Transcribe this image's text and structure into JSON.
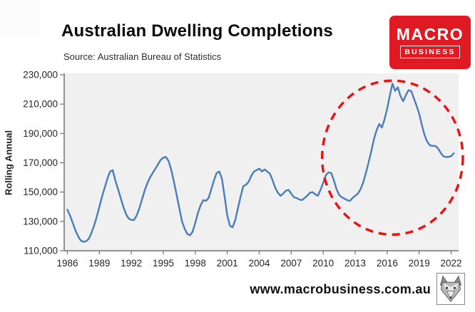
{
  "header": {
    "title": "Australian Dwelling Completions",
    "source": "Source: Australian Bureau of Statistics"
  },
  "logo": {
    "line1": "MACRO",
    "line2": "BUSINESS",
    "bg_color": "#e01a23"
  },
  "footer": {
    "website": "www.macrobusiness.com.au"
  },
  "icons": {
    "footer_logo": "wolf-head-icon"
  },
  "colors": {
    "line": "#4a7cba",
    "annotation_red": "#ea1414",
    "plot_background": "#f0f0f1",
    "axis": "#737373",
    "tick_label": "#262626"
  },
  "chart_data": {
    "type": "line",
    "title": "Australian Dwelling Completions",
    "subtitle": "Source: Australian Bureau of Statistics",
    "xlabel": "",
    "ylabel": "Rolling Annual",
    "grid": false,
    "legend": null,
    "xlim": [
      1985.7,
      2022.7
    ],
    "ylim": [
      110000,
      230000
    ],
    "x_ticks": [
      1986,
      1989,
      1992,
      1995,
      1998,
      2001,
      2004,
      2007,
      2010,
      2013,
      2016,
      2019,
      2022
    ],
    "y_ticks": [
      {
        "v": 110000,
        "label": "110,000"
      },
      {
        "v": 130000,
        "label": "130,000"
      },
      {
        "v": 150000,
        "label": "150,000"
      },
      {
        "v": 170000,
        "label": "170,000"
      },
      {
        "v": 190000,
        "label": "190,000"
      },
      {
        "v": 210000,
        "label": "210,000"
      },
      {
        "v": 230000,
        "label": "230,000"
      }
    ],
    "series": [
      {
        "name": "Dwelling completions, rolling annual",
        "x_unit": "year",
        "x_start": 1986.0,
        "x_step": 0.25,
        "values": [
          138000,
          134000,
          129000,
          124000,
          120000,
          117000,
          116000,
          116500,
          118000,
          122000,
          127000,
          133000,
          140000,
          147000,
          153000,
          159000,
          164000,
          165000,
          158000,
          152000,
          146000,
          140000,
          135000,
          132000,
          131000,
          131000,
          134000,
          139000,
          145000,
          151000,
          156000,
          160000,
          163000,
          166000,
          169000,
          172000,
          173500,
          174000,
          171000,
          165000,
          157000,
          148000,
          139000,
          130000,
          125000,
          121500,
          120500,
          123000,
          129000,
          136000,
          141000,
          144500,
          144000,
          146000,
          152000,
          158000,
          163000,
          164000,
          159000,
          147000,
          134000,
          127000,
          126000,
          131000,
          139000,
          147000,
          154000,
          155000,
          157000,
          161000,
          164000,
          165000,
          166000,
          164000,
          165500,
          164000,
          162500,
          158000,
          153000,
          149500,
          147500,
          149000,
          151000,
          151500,
          149000,
          146500,
          146000,
          145000,
          144500,
          146000,
          147500,
          149500,
          150000,
          148500,
          147500,
          151500,
          156500,
          161500,
          163500,
          163000,
          158000,
          152000,
          148000,
          146500,
          145500,
          144500,
          144000,
          146000,
          147500,
          149000,
          152000,
          156500,
          163000,
          170000,
          177500,
          186000,
          192000,
          196500,
          194000,
          199500,
          207000,
          216000,
          224000,
          219000,
          221500,
          215500,
          212000,
          216000,
          219500,
          219000,
          214000,
          209000,
          203500,
          196000,
          189000,
          184500,
          182000,
          181500,
          181500,
          180000,
          177000,
          174500,
          174000,
          174000,
          174500,
          176500
        ]
      }
    ],
    "annotation": {
      "type": "dashed-ellipse",
      "color": "#ea1414",
      "center_year": 2016.5,
      "center_value": 173500,
      "radius_years": 6.6,
      "radius_value": 52500,
      "meaning": "highlights the 2013-2022 completions boom and decline"
    }
  }
}
